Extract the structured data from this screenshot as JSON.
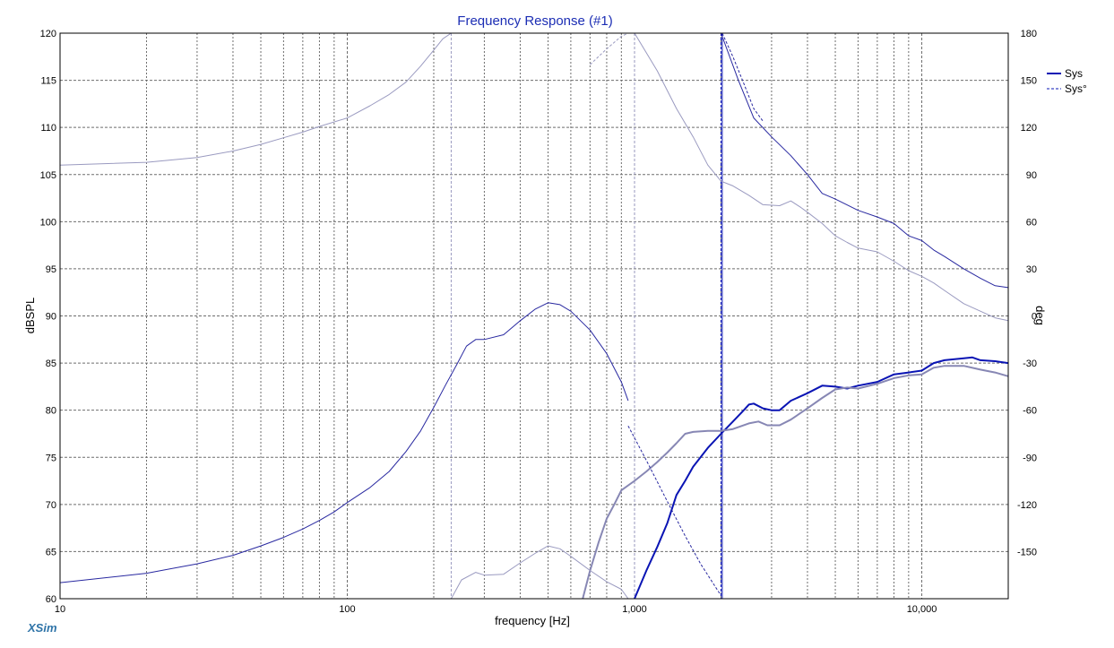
{
  "colors": {
    "sys": "#0a14b4",
    "sys_light": "#8787b4",
    "sys_thin": "#2828a0",
    "sys_thin_light": "#9a9ac0",
    "grid": "#6e6e6e",
    "title": "#1c2eb4",
    "brand": "#2f74a8",
    "frame": "#000000"
  },
  "brand_label": "XSim",
  "chart_data": {
    "type": "line",
    "title": "Frequency Response (#1)",
    "xlabel": "frequency [Hz]",
    "ylabel": "dBSPL",
    "ylabel_right": "deg",
    "xscale": "log",
    "xlim": [
      10,
      20000
    ],
    "ylim": [
      60,
      120
    ],
    "ylim_right": [
      -180,
      180
    ],
    "grid": true,
    "legend_position": "top-right",
    "x_ticks": [
      {
        "value": 10,
        "label": "10"
      },
      {
        "value": 100,
        "label": "100"
      },
      {
        "value": 1000,
        "label": "1,000"
      },
      {
        "value": 10000,
        "label": "10,000"
      }
    ],
    "y_ticks": [
      "60",
      "65",
      "70",
      "75",
      "80",
      "85",
      "90",
      "95",
      "100",
      "105",
      "110",
      "115",
      "120"
    ],
    "y_ticks_right": [
      "",
      "-150",
      "-120",
      "-90",
      "-60",
      "-30",
      "0",
      "30",
      "60",
      "90",
      "120",
      "150",
      "180"
    ],
    "legend": [
      {
        "name": "Sys",
        "style": "solid"
      },
      {
        "name": "Sys°",
        "style": "dashed"
      }
    ],
    "series": [
      {
        "name": "Sys",
        "axis": "left",
        "style": "solid",
        "width": 2,
        "color_key": "sys",
        "points": [
          [
            1000,
            60
          ],
          [
            1100,
            63
          ],
          [
            1200,
            65.5
          ],
          [
            1300,
            68
          ],
          [
            1400,
            71
          ],
          [
            1500,
            72.5
          ],
          [
            1600,
            74
          ],
          [
            1800,
            76
          ],
          [
            2000,
            77.5
          ],
          [
            2200,
            78.8
          ],
          [
            2400,
            80
          ],
          [
            2500,
            80.6
          ],
          [
            2600,
            80.7
          ],
          [
            2800,
            80.2
          ],
          [
            3000,
            80
          ],
          [
            3200,
            80
          ],
          [
            3500,
            81
          ],
          [
            4000,
            81.8
          ],
          [
            4500,
            82.6
          ],
          [
            5000,
            82.5
          ],
          [
            5500,
            82.3
          ],
          [
            6000,
            82.6
          ],
          [
            7000,
            83
          ],
          [
            8000,
            83.8
          ],
          [
            9000,
            84
          ],
          [
            10000,
            84.2
          ],
          [
            11000,
            85
          ],
          [
            12000,
            85.3
          ],
          [
            14000,
            85.5
          ],
          [
            15000,
            85.6
          ],
          [
            16000,
            85.3
          ],
          [
            18000,
            85.2
          ],
          [
            20000,
            85
          ]
        ]
      },
      {
        "name": "Sys",
        "axis": "left",
        "style": "solid",
        "width": 2,
        "color_key": "sys_light",
        "points": [
          [
            660,
            60
          ],
          [
            700,
            63
          ],
          [
            750,
            66
          ],
          [
            800,
            68.5
          ],
          [
            850,
            70
          ],
          [
            900,
            71.5
          ],
          [
            1000,
            72.5
          ],
          [
            1100,
            73.5
          ],
          [
            1200,
            74.5
          ],
          [
            1300,
            75.5
          ],
          [
            1400,
            76.5
          ],
          [
            1500,
            77.5
          ],
          [
            1600,
            77.7
          ],
          [
            1800,
            77.8
          ],
          [
            2000,
            77.8
          ],
          [
            2200,
            78
          ],
          [
            2500,
            78.6
          ],
          [
            2700,
            78.8
          ],
          [
            2900,
            78.4
          ],
          [
            3200,
            78.4
          ],
          [
            3500,
            79
          ],
          [
            4000,
            80.2
          ],
          [
            4500,
            81.3
          ],
          [
            5000,
            82.2
          ],
          [
            5500,
            82.4
          ],
          [
            6000,
            82.3
          ],
          [
            7000,
            82.8
          ],
          [
            8000,
            83.4
          ],
          [
            9000,
            83.7
          ],
          [
            10000,
            83.8
          ],
          [
            11000,
            84.5
          ],
          [
            12000,
            84.7
          ],
          [
            14000,
            84.7
          ],
          [
            16000,
            84.3
          ],
          [
            18000,
            84
          ],
          [
            20000,
            83.6
          ]
        ]
      },
      {
        "name": "Sys",
        "axis": "left",
        "style": "solid",
        "width": 1,
        "color_key": "sys_thin",
        "points": [
          [
            10,
            61.7
          ],
          [
            20,
            62.7
          ],
          [
            30,
            63.7
          ],
          [
            40,
            64.6
          ],
          [
            50,
            65.6
          ],
          [
            60,
            66.5
          ],
          [
            70,
            67.4
          ],
          [
            80,
            68.3
          ],
          [
            90,
            69.2
          ],
          [
            100,
            70.2
          ],
          [
            120,
            71.8
          ],
          [
            140,
            73.5
          ],
          [
            160,
            75.6
          ],
          [
            180,
            77.8
          ],
          [
            200,
            80.3
          ],
          [
            220,
            82.7
          ],
          [
            240,
            84.8
          ],
          [
            260,
            86.8
          ],
          [
            280,
            87.5
          ],
          [
            300,
            87.5
          ],
          [
            350,
            88
          ],
          [
            400,
            89.5
          ],
          [
            450,
            90.7
          ],
          [
            500,
            91.4
          ],
          [
            550,
            91.2
          ],
          [
            600,
            90.5
          ],
          [
            700,
            88.5
          ],
          [
            800,
            86
          ],
          [
            900,
            83
          ],
          [
            950,
            81
          ]
        ]
      },
      {
        "name": "Sys",
        "axis": "left",
        "style": "solid",
        "width": 1,
        "color_key": "sys_thin",
        "points": [
          [
            2000,
            120
          ],
          [
            2300,
            115
          ],
          [
            2600,
            111
          ],
          [
            3000,
            109
          ],
          [
            3500,
            107
          ],
          [
            4000,
            105
          ],
          [
            4500,
            103
          ],
          [
            5000,
            102.4
          ],
          [
            6000,
            101.2
          ],
          [
            7000,
            100.5
          ],
          [
            8000,
            99.8
          ],
          [
            9000,
            98.5
          ],
          [
            10000,
            98
          ],
          [
            11000,
            97
          ],
          [
            12000,
            96.3
          ],
          [
            14000,
            95
          ],
          [
            16000,
            94
          ],
          [
            18000,
            93.2
          ],
          [
            20000,
            93
          ]
        ]
      },
      {
        "name": "Sys",
        "axis": "left",
        "style": "solid",
        "width": 1,
        "color_key": "sys_thin_light",
        "points": [
          [
            10,
            106
          ],
          [
            20,
            106.3
          ],
          [
            30,
            106.8
          ],
          [
            40,
            107.5
          ],
          [
            50,
            108.2
          ],
          [
            60,
            108.9
          ],
          [
            70,
            109.5
          ],
          [
            80,
            110.1
          ],
          [
            100,
            111
          ],
          [
            120,
            112.3
          ],
          [
            140,
            113.5
          ],
          [
            160,
            114.8
          ],
          [
            180,
            116.5
          ],
          [
            200,
            118.2
          ],
          [
            215,
            119.4
          ],
          [
            230,
            120
          ]
        ]
      },
      {
        "name": "Sys",
        "axis": "left",
        "style": "solid",
        "width": 1,
        "color_key": "sys_thin_light",
        "points": [
          [
            1000,
            120
          ],
          [
            1200,
            116
          ],
          [
            1400,
            112
          ],
          [
            1600,
            109
          ],
          [
            1800,
            106
          ],
          [
            2000,
            104.3
          ],
          [
            2200,
            103.8
          ],
          [
            2500,
            102.8
          ],
          [
            2800,
            101.8
          ],
          [
            3200,
            101.7
          ],
          [
            3500,
            102.2
          ],
          [
            3800,
            101.5
          ],
          [
            4000,
            101
          ],
          [
            4500,
            99.8
          ],
          [
            5000,
            98.5
          ],
          [
            5500,
            97.8
          ],
          [
            6000,
            97.2
          ],
          [
            7000,
            96.8
          ],
          [
            8000,
            95.8
          ],
          [
            9000,
            94.8
          ],
          [
            10000,
            94.2
          ],
          [
            11000,
            93.5
          ],
          [
            12000,
            92.7
          ],
          [
            14000,
            91.3
          ],
          [
            16000,
            90.5
          ],
          [
            18000,
            89.8
          ],
          [
            20000,
            89.5
          ]
        ]
      },
      {
        "name": "Sys",
        "axis": "left",
        "style": "solid",
        "width": 1,
        "color_key": "sys_thin_light",
        "points": [
          [
            230,
            60
          ],
          [
            250,
            62
          ],
          [
            280,
            62.8
          ],
          [
            300,
            62.5
          ],
          [
            350,
            62.6
          ],
          [
            400,
            63.8
          ],
          [
            450,
            64.8
          ],
          [
            500,
            65.6
          ],
          [
            550,
            65.3
          ],
          [
            600,
            64.5
          ],
          [
            700,
            63
          ],
          [
            800,
            61.8
          ],
          [
            900,
            61
          ],
          [
            950,
            60
          ]
        ]
      },
      {
        "name": "Sys°",
        "axis": "right",
        "style": "dashed",
        "width": 1,
        "color_key": "sys_thin",
        "points": [
          [
            950,
            -70
          ],
          [
            1100,
            -92
          ],
          [
            1300,
            -118
          ],
          [
            1500,
            -140
          ],
          [
            1700,
            -158
          ],
          [
            2000,
            -178
          ]
        ]
      },
      {
        "name": "Sys°",
        "axis": "right",
        "style": "dashed",
        "width": 1,
        "color_key": "sys_thin",
        "points": [
          [
            2020,
            180
          ],
          [
            2200,
            165
          ],
          [
            2400,
            148
          ],
          [
            2600,
            132
          ],
          [
            2800,
            124
          ]
        ]
      },
      {
        "name": "Sys°",
        "axis": "right",
        "style": "dashed",
        "width": 1,
        "color_key": "sys_thin_light",
        "points": [
          [
            700,
            160
          ],
          [
            800,
            170
          ],
          [
            900,
            178
          ],
          [
            950,
            180
          ]
        ]
      }
    ],
    "vertical_lines": [
      {
        "x": 230,
        "color_key": "sys_thin_light",
        "style": "dashed"
      },
      {
        "x": 1000,
        "color_key": "sys_thin_light",
        "style": "dashed"
      },
      {
        "x": 2000,
        "color_key": "sys",
        "style": "dashed"
      },
      {
        "x": 2020,
        "color_key": "sys",
        "style": "solid"
      }
    ]
  }
}
